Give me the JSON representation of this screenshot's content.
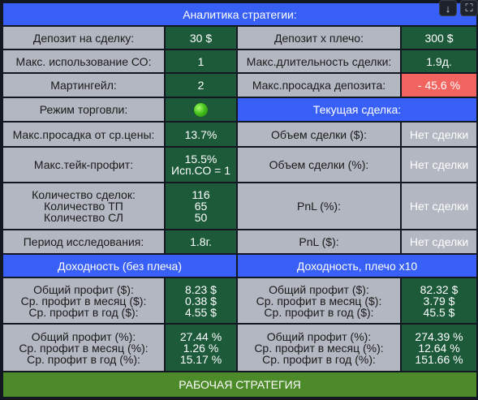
{
  "header": {
    "title": "Аналитика стратегии:"
  },
  "toolbar": {
    "download_icon": "↓",
    "expand_icon": "⛶"
  },
  "rows": {
    "deposit": {
      "label": "Депозит на сделку:",
      "value": "30 $"
    },
    "deposit_lev": {
      "label": "Депозит x плечо:",
      "value": "300 $"
    },
    "max_so": {
      "label": "Макс. использование СО:",
      "value": "1"
    },
    "max_duration": {
      "label": "Макс.длительность сделки:",
      "value": "1.9д."
    },
    "martingale": {
      "label": "Мартингейл:",
      "value": "2"
    },
    "max_dd_deposit": {
      "label": "Макс.просадка депозита:",
      "value": "- 45.6 %"
    },
    "trade_mode": {
      "label": "Режим торговли:",
      "status_color": "#3fbf1a"
    },
    "current_trade": {
      "title": "Текущая сделка:"
    },
    "max_dd_avg": {
      "label": "Макс.просадка от ср.цены:",
      "value": "13.7%"
    },
    "trade_volume_usd": {
      "label": "Объем сделки ($):",
      "value": "Нет сделки"
    },
    "max_tp": {
      "label": "Макс.тейк-профит:",
      "value_line1": "15.5%",
      "value_line2": "Исп.СО = 1"
    },
    "trade_volume_pct": {
      "label": "Объем сделки (%):",
      "value": "Нет сделки"
    },
    "counts": {
      "label_line1": "Количество сделок:",
      "label_line2": "Количество ТП",
      "label_line3": "Количество СЛ",
      "value_line1": "116",
      "value_line2": "65",
      "value_line3": "50"
    },
    "pnl_pct": {
      "label": "PnL (%):",
      "value": "Нет сделки"
    },
    "research_period": {
      "label": "Период исследования:",
      "value": "1.8г."
    },
    "pnl_usd": {
      "label": "PnL ($):",
      "value": "Нет сделки"
    }
  },
  "sections": {
    "no_leverage": {
      "title": "Доходность (без плеча)"
    },
    "leverage": {
      "title": "Доходность, плечо x10"
    }
  },
  "profit_usd": {
    "label_line1": "Общий профит ($):",
    "label_line2": "Ср. профит в месяц ($):",
    "label_line3": "Ср. профит в год ($):",
    "no_lev_line1": "8.23 $",
    "no_lev_line2": "0.38 $",
    "no_lev_line3": "4.55 $",
    "lev_line1": "82.32 $",
    "lev_line2": "3.79 $",
    "lev_line3": "45.5 $"
  },
  "profit_pct": {
    "label_line1": "Общий профит (%):",
    "label_line2": "Ср. профит в месяц (%):",
    "label_line3": "Ср. профит в год (%):",
    "no_lev_line1": "27.44 %",
    "no_lev_line2": "1.26 %",
    "no_lev_line3": "15.17 %",
    "lev_line1": "274.39 %",
    "lev_line2": "12.64 %",
    "lev_line3": "151.66 %"
  },
  "footer": {
    "status": "РАБОЧАЯ СТРАТЕГИЯ"
  },
  "colors": {
    "header_blue": "#3860f6",
    "value_green": "#1c5a3a",
    "label_gray": "#b3b7c1",
    "negative_red": "#f2645f",
    "footer_green": "#4c8a2a",
    "background": "#131722"
  }
}
